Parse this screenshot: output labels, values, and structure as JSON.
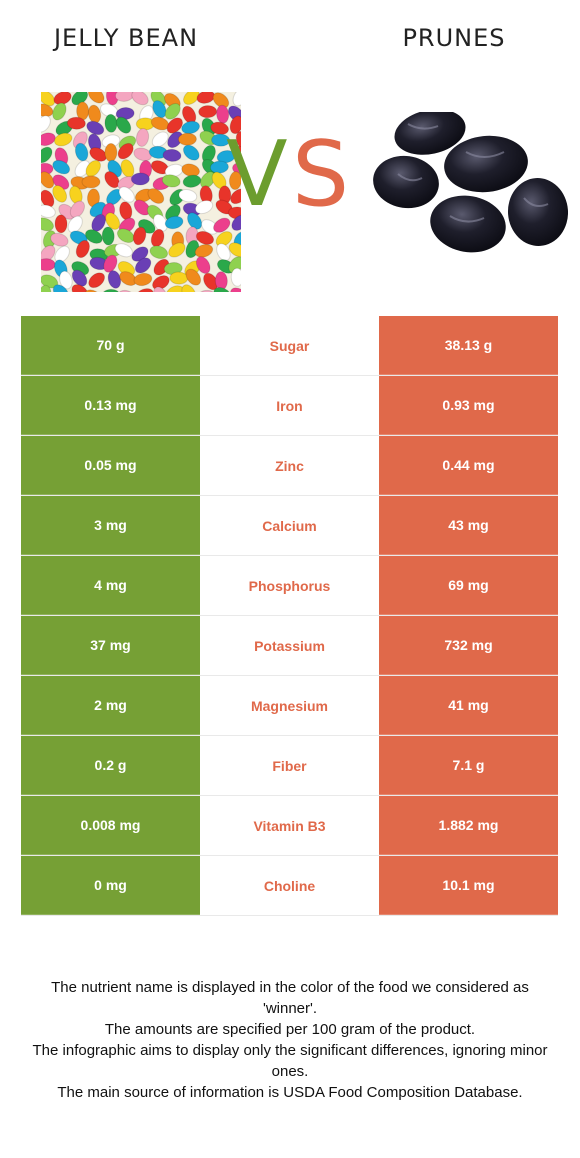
{
  "left_food": {
    "title": "JELLY BEAN",
    "icon": "jelly-beans-photo",
    "color": "#76a035"
  },
  "right_food": {
    "title": "PRUNES",
    "icon": "prunes-photo",
    "color": "#e0694a"
  },
  "vs": {
    "v": "V",
    "s": "S"
  },
  "rows": [
    {
      "nutrient": "Sugar",
      "left": "70 g",
      "right": "38.13 g"
    },
    {
      "nutrient": "Iron",
      "left": "0.13 mg",
      "right": "0.93 mg"
    },
    {
      "nutrient": "Zinc",
      "left": "0.05 mg",
      "right": "0.44 mg"
    },
    {
      "nutrient": "Calcium",
      "left": "3 mg",
      "right": "43 mg"
    },
    {
      "nutrient": "Phosphorus",
      "left": "4 mg",
      "right": "69 mg"
    },
    {
      "nutrient": "Potassium",
      "left": "37 mg",
      "right": "732 mg"
    },
    {
      "nutrient": "Magnesium",
      "left": "2 mg",
      "right": "41 mg"
    },
    {
      "nutrient": "Fiber",
      "left": "0.2 g",
      "right": "7.1 g"
    },
    {
      "nutrient": "Vitamin B3",
      "left": "0.008 mg",
      "right": "1.882 mg"
    },
    {
      "nutrient": "Choline",
      "left": "0 mg",
      "right": "10.1 mg"
    }
  ],
  "footnote": [
    "The nutrient name is displayed in the color of the food we considered as 'winner'.",
    "The amounts are specified per 100 gram of the product.",
    "The infographic aims to display only the significant differences, ignoring minor ones.",
    "The main source of information is USDA Food Composition Database."
  ]
}
